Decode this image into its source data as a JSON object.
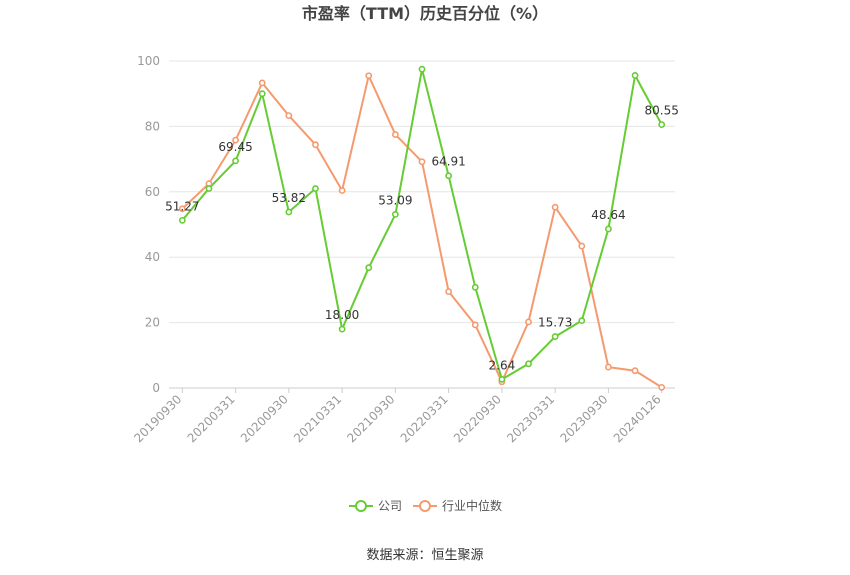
{
  "chart_data": {
    "type": "line",
    "title": "市盈率（TTM）历史百分位（%）",
    "source": "数据来源：恒生聚源",
    "ylim": [
      0,
      100
    ],
    "yticks": [
      0,
      20,
      40,
      60,
      80,
      100
    ],
    "grid": true,
    "legend_position": "bottom",
    "x": [
      "20190930",
      "20191231",
      "20200331",
      "20200630",
      "20200930",
      "20201231",
      "20210331",
      "20210630",
      "20210930",
      "20211231",
      "20220331",
      "20220630",
      "20220930",
      "20221230",
      "20230331",
      "20230630",
      "20230930",
      "20231229",
      "20240126"
    ],
    "xtick_labels": [
      "20190930",
      "20200331",
      "20200930",
      "20210331",
      "20210930",
      "20220331",
      "20220930",
      "20230331",
      "20230930",
      "20240126"
    ],
    "series": [
      {
        "name": "公司",
        "color": "#66cc33",
        "values": [
          51.27,
          61.0,
          69.45,
          90.0,
          53.82,
          61.0,
          18.0,
          36.8,
          53.09,
          97.5,
          64.91,
          30.8,
          2.64,
          7.4,
          15.73,
          20.6,
          48.64,
          95.6,
          80.55
        ],
        "labels": {
          "0": "51.27",
          "2": "69.45",
          "4": "53.82",
          "6": "18.00",
          "8": "53.09",
          "10": "64.91",
          "12": "2.64",
          "14": "15.73",
          "16": "48.64",
          "18": "80.55"
        }
      },
      {
        "name": "行业中位数",
        "color": "#f59a6e",
        "values": [
          54.8,
          62.5,
          75.8,
          93.3,
          83.3,
          74.4,
          60.4,
          95.5,
          77.5,
          69.2,
          29.5,
          19.3,
          1.9,
          20.2,
          55.3,
          43.4,
          6.4,
          5.3,
          0.2
        ]
      }
    ]
  }
}
